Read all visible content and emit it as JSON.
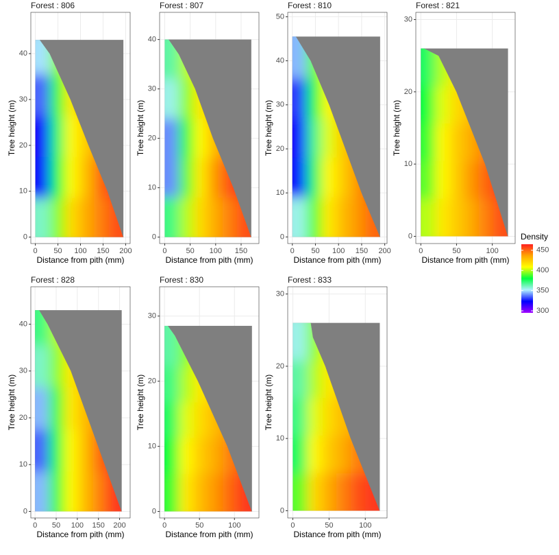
{
  "chart_data": [
    {
      "type": "heatmap",
      "title": "Forest :  806",
      "x_label": "Distance from pith (mm)",
      "y_label": "Tree height (m)",
      "xlim": [
        -10,
        210
      ],
      "ylim": [
        -1.4,
        49
      ],
      "xticks": [
        0,
        50,
        100,
        150,
        200
      ],
      "yticks": [
        0,
        10,
        20,
        30,
        40
      ],
      "heights": [
        4,
        13,
        22,
        31,
        40
      ],
      "distances": [
        16,
        49,
        81,
        114,
        146,
        179
      ],
      "density": [
        [
          360,
          395,
          420,
          435,
          445,
          455
        ],
        [
          325,
          380,
          410,
          430,
          450,
          460
        ],
        [
          320,
          375,
          410,
          425,
          440,
          450
        ],
        [
          335,
          385,
          415,
          430,
          440,
          445
        ],
        [
          350,
          395,
          415,
          425,
          430,
          430
        ]
      ],
      "stem": {
        "heights": [
          0,
          10,
          20,
          30,
          40,
          43
        ],
        "radius": [
          195,
          160,
          118,
          78,
          32,
          10
        ]
      }
    },
    {
      "type": "heatmap",
      "title": "Forest :  807",
      "x_label": "Distance from pith (mm)",
      "y_label": "Tree height (m)",
      "xlim": [
        -10,
        185
      ],
      "ylim": [
        -1.3,
        45.5
      ],
      "xticks": [
        0,
        50,
        100,
        150
      ],
      "yticks": [
        0,
        10,
        20,
        30,
        40
      ],
      "heights": [
        4,
        12,
        20,
        28,
        36
      ],
      "distances": [
        14,
        42,
        71,
        99,
        128,
        156
      ],
      "density": [
        [
          370,
          400,
          420,
          435,
          445,
          455
        ],
        [
          340,
          390,
          415,
          440,
          455,
          460
        ],
        [
          340,
          385,
          410,
          430,
          445,
          450
        ],
        [
          355,
          395,
          415,
          430,
          440,
          440
        ],
        [
          365,
          400,
          415,
          425,
          430,
          430
        ]
      ],
      "stem": {
        "heights": [
          0,
          10,
          20,
          30,
          37,
          40
        ],
        "radius": [
          170,
          135,
          95,
          60,
          28,
          8
        ]
      }
    },
    {
      "type": "heatmap",
      "title": "Forest :  810",
      "x_label": "Distance from pith (mm)",
      "y_label": "Tree height (m)",
      "xlim": [
        -10,
        205
      ],
      "ylim": [
        -1.5,
        51
      ],
      "xticks": [
        0,
        50,
        100,
        150,
        200
      ],
      "yticks": [
        0,
        10,
        20,
        30,
        40,
        50
      ],
      "heights": [
        4.5,
        13.5,
        22.5,
        31.5,
        40.5
      ],
      "distances": [
        16,
        47,
        79,
        111,
        142,
        174
      ],
      "density": [
        [
          355,
          390,
          415,
          430,
          440,
          450
        ],
        [
          325,
          375,
          410,
          425,
          440,
          455
        ],
        [
          320,
          370,
          405,
          425,
          440,
          450
        ],
        [
          330,
          380,
          410,
          425,
          435,
          440
        ],
        [
          345,
          390,
          410,
          420,
          425,
          425
        ]
      ],
      "stem": {
        "heights": [
          0,
          10,
          20,
          30,
          40,
          45.5
        ],
        "radius": [
          190,
          150,
          115,
          80,
          40,
          8
        ]
      }
    },
    {
      "type": "heatmap",
      "title": "Forest :  821",
      "x_label": "Distance from pith (mm)",
      "y_label": "Tree height (m)",
      "xlim": [
        -7,
        132
      ],
      "ylim": [
        -1,
        31
      ],
      "xticks": [
        0,
        50,
        100
      ],
      "yticks": [
        0,
        10,
        20,
        30
      ],
      "heights": [
        2.6,
        7.8,
        13,
        18.2,
        23.4
      ],
      "distances": [
        10,
        30,
        51,
        71,
        91,
        112
      ],
      "density": [
        [
          400,
          415,
          425,
          435,
          445,
          455
        ],
        [
          390,
          410,
          425,
          440,
          450,
          460
        ],
        [
          385,
          410,
          425,
          435,
          445,
          450
        ],
        [
          380,
          405,
          420,
          430,
          440,
          440
        ],
        [
          375,
          400,
          415,
          420,
          425,
          425
        ]
      ],
      "stem": {
        "heights": [
          0,
          10,
          20,
          25,
          26
        ],
        "radius": [
          122,
          90,
          50,
          25,
          5
        ]
      }
    },
    {
      "type": "heatmap",
      "title": "Forest :  828",
      "x_label": "Distance from pith (mm)",
      "y_label": "Tree height (m)",
      "xlim": [
        -10,
        225
      ],
      "ylim": [
        -1.4,
        48
      ],
      "xticks": [
        0,
        50,
        100,
        150,
        200
      ],
      "yticks": [
        0,
        10,
        20,
        30,
        40
      ],
      "heights": [
        4,
        13,
        22,
        31,
        40
      ],
      "distances": [
        17,
        51,
        85,
        120,
        154,
        188
      ],
      "density": [
        [
          345,
          385,
          410,
          430,
          445,
          460
        ],
        [
          335,
          380,
          410,
          430,
          450,
          460
        ],
        [
          345,
          385,
          415,
          430,
          440,
          450
        ],
        [
          360,
          395,
          415,
          430,
          440,
          445
        ],
        [
          370,
          400,
          420,
          425,
          430,
          430
        ]
      ],
      "stem": {
        "heights": [
          0,
          10,
          20,
          30,
          40,
          43
        ],
        "radius": [
          205,
          165,
          125,
          85,
          30,
          10
        ]
      }
    },
    {
      "type": "heatmap",
      "title": "Forest :  830",
      "x_label": "Distance from pith (mm)",
      "y_label": "Tree height (m)",
      "xlim": [
        -7,
        135
      ],
      "ylim": [
        -1,
        34.5
      ],
      "xticks": [
        0,
        50,
        100
      ],
      "yticks": [
        0,
        10,
        20,
        30
      ],
      "heights": [
        3,
        8.5,
        14,
        19.5,
        25
      ],
      "distances": [
        10,
        31,
        52,
        73,
        94,
        115
      ],
      "density": [
        [
          385,
          415,
          430,
          440,
          450,
          460
        ],
        [
          380,
          410,
          425,
          435,
          445,
          455
        ],
        [
          375,
          405,
          420,
          430,
          440,
          445
        ],
        [
          370,
          400,
          415,
          425,
          430,
          430
        ],
        [
          365,
          395,
          410,
          415,
          420,
          420
        ]
      ],
      "stem": {
        "heights": [
          0,
          10,
          20,
          27,
          28.5
        ],
        "radius": [
          125,
          90,
          48,
          15,
          5
        ]
      }
    },
    {
      "type": "heatmap",
      "title": "Forest :  833",
      "x_label": "Distance from pith (mm)",
      "y_label": "Tree height (m)",
      "xlim": [
        -7,
        130
      ],
      "ylim": [
        -1,
        31
      ],
      "xticks": [
        0,
        50,
        100
      ],
      "yticks": [
        0,
        10,
        20,
        30
      ],
      "heights": [
        2.6,
        7.8,
        13,
        18.2,
        23.4
      ],
      "distances": [
        10,
        30,
        50,
        70,
        90,
        110
      ],
      "density": [
        [
          390,
          420,
          435,
          445,
          455,
          460
        ],
        [
          375,
          410,
          425,
          435,
          445,
          450
        ],
        [
          370,
          405,
          420,
          430,
          435,
          440
        ],
        [
          365,
          400,
          415,
          425,
          430,
          430
        ],
        [
          355,
          395,
          410,
          415,
          420,
          420
        ]
      ],
      "stem": {
        "heights": [
          0,
          10,
          20,
          24,
          26
        ],
        "radius": [
          120,
          80,
          45,
          28,
          25
        ]
      }
    }
  ],
  "legend": {
    "title": "Density",
    "lim": [
      295,
      465
    ],
    "ticks": [
      300,
      350,
      400,
      450
    ],
    "colors": [
      "#a000ff",
      "#0000ff",
      "#b0f0ff",
      "#00ff40",
      "#ffff00",
      "#ffa500",
      "#ff2020"
    ],
    "stem_color": "#7f7f7f"
  }
}
